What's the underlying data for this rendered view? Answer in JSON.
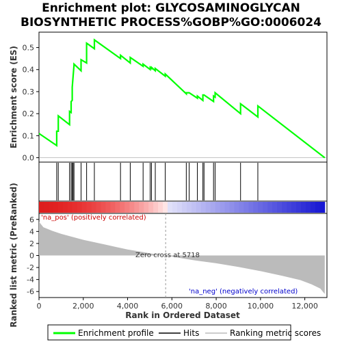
{
  "chart_data": {
    "type": "line",
    "title_line1": "Enrichment plot: GLYCOSAMINOGLYCAN",
    "title_line2": "BIOSYNTHETIC PROCESS%GOBP%GO:0006024",
    "es_ylabel": "Enrichment score (ES)",
    "rank_ylabel": "Ranked list metric (PreRanked)",
    "xlabel": "Rank in Ordered Dataset",
    "xlim": [
      0,
      13000
    ],
    "es_ylim": [
      -0.02,
      0.57
    ],
    "rank_ylim": [
      -7,
      7
    ],
    "x_ticks": [
      0,
      2000,
      4000,
      6000,
      8000,
      10000,
      12000
    ],
    "x_tick_labels": [
      "0",
      "2,000",
      "4,000",
      "6,000",
      "8,000",
      "10,000",
      "12,000"
    ],
    "es_ticks": [
      0.0,
      0.1,
      0.2,
      0.3,
      0.4,
      0.5
    ],
    "es_tick_labels": [
      "0.0",
      "0.1",
      "0.2",
      "0.3",
      "0.4",
      "0.5"
    ],
    "rank_ticks": [
      -6,
      -4,
      -2,
      0,
      2,
      4,
      6
    ],
    "rank_tick_labels": [
      "-6",
      "-4",
      "-2",
      "0",
      "2",
      "4",
      "6"
    ],
    "annotations": {
      "pos_label": "'na_pos' (positively correlated)",
      "neg_label": "'na_neg' (negatively correlated)",
      "zero_cross": "Zero cross at 5718"
    },
    "zero_cross": 5718,
    "n_genes": 12900,
    "hits": [
      800,
      870,
      1380,
      1450,
      1500,
      1540,
      1580,
      1900,
      2150,
      2500,
      3680,
      4120,
      4700,
      5020,
      5080,
      5250,
      5700,
      6650,
      6780,
      7150,
      7400,
      7450,
      7880,
      7950,
      9100,
      9880
    ],
    "series": [
      {
        "name": "Enrichment profile",
        "color": "#00ff00",
        "x": [
          0,
          800,
          800,
          870,
          870,
          1380,
          1380,
          1450,
          1450,
          1500,
          1500,
          1540,
          1540,
          1580,
          1580,
          1900,
          1900,
          2150,
          2150,
          2500,
          2500,
          3680,
          3680,
          4120,
          4120,
          4700,
          4700,
          5020,
          5020,
          5080,
          5080,
          5250,
          5250,
          5700,
          5700,
          6650,
          6650,
          6780,
          6780,
          7150,
          7150,
          7400,
          7400,
          7450,
          7450,
          7880,
          7880,
          7950,
          7950,
          9100,
          9100,
          9880,
          9880,
          12900
        ],
        "y": [
          0.11,
          0.055,
          0.12,
          0.12,
          0.19,
          0.15,
          0.21,
          0.205,
          0.255,
          0.26,
          0.32,
          0.37,
          0.37,
          0.42,
          0.425,
          0.395,
          0.445,
          0.43,
          0.52,
          0.495,
          0.535,
          0.45,
          0.465,
          0.43,
          0.455,
          0.415,
          0.425,
          0.4,
          0.41,
          0.405,
          0.41,
          0.395,
          0.405,
          0.37,
          0.38,
          0.29,
          0.295,
          0.295,
          0.295,
          0.27,
          0.28,
          0.26,
          0.285,
          0.285,
          0.285,
          0.255,
          0.28,
          0.275,
          0.295,
          0.2,
          0.245,
          0.185,
          0.235,
          0.0
        ]
      }
    ],
    "ranked_metric": {
      "x": [
        0,
        200,
        600,
        1000,
        1500,
        2000,
        2500,
        3000,
        3500,
        4000,
        4500,
        5000,
        5718,
        6500,
        7000,
        8000,
        9000,
        10000,
        11000,
        11800,
        12300,
        12700,
        12900
      ],
      "y": [
        5.6,
        4.7,
        4.1,
        3.6,
        3.1,
        2.6,
        2.2,
        1.8,
        1.4,
        1.0,
        0.7,
        0.35,
        0.0,
        -0.5,
        -0.8,
        -1.3,
        -1.9,
        -2.6,
        -3.4,
        -4.1,
        -4.8,
        -5.5,
        -6.4
      ]
    },
    "legend": {
      "placement": "bottom",
      "items": [
        {
          "label": "Enrichment profile",
          "color": "#00ff00"
        },
        {
          "label": "Hits",
          "color": "#000000"
        },
        {
          "label": "Ranking metric scores",
          "color": "#bbbbbb"
        }
      ]
    },
    "grid": false
  },
  "colors": {
    "pos_label": "#cc0000",
    "neg_label": "#0000cc",
    "metric_fill": "#bbbbbb"
  }
}
